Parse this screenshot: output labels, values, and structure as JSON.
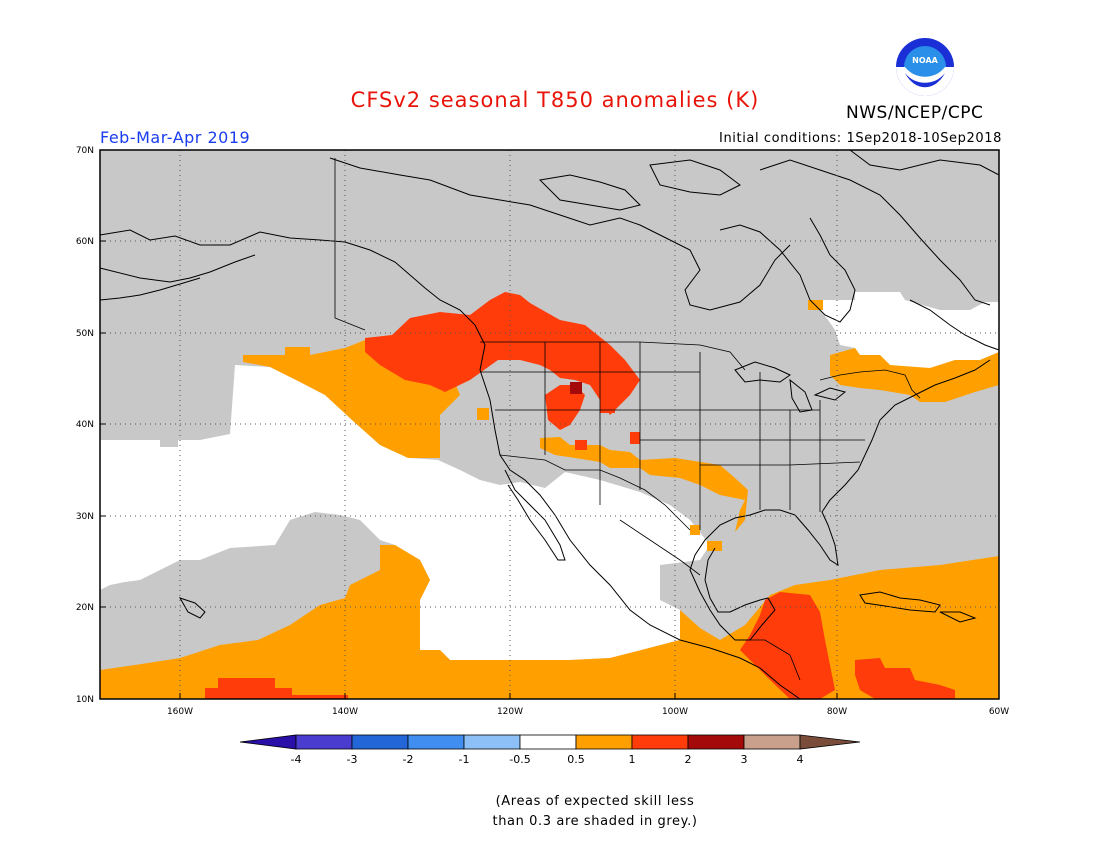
{
  "title": "CFSv2 seasonal T850 anomalies (K)",
  "agency": "NWS/NCEP/CPC",
  "logo_text": "NOAA",
  "period": "Feb-Mar-Apr 2019",
  "initial_conditions": "Initial conditions: 1Sep2018-10Sep2018",
  "lat_labels": [
    "70N",
    "60N",
    "50N",
    "40N",
    "30N",
    "20N",
    "10N"
  ],
  "lon_labels": [
    "160W",
    "140W",
    "120W",
    "100W",
    "80W",
    "60W"
  ],
  "colorbar": {
    "labels": [
      "-4",
      "-3",
      "-2",
      "-1",
      "-0.5",
      "0.5",
      "1",
      "2",
      "3",
      "4"
    ],
    "colors": [
      "#2a0fa8",
      "#4a3ccf",
      "#2266d8",
      "#3f8ef0",
      "#8cc0f6",
      "#ffffff",
      "#ffa000",
      "#ff3c0a",
      "#a50a0a",
      "#c8a08c",
      "#7a4d3a"
    ]
  },
  "legend_colors": {
    "grey_low_skill": "#c8c8c8",
    "near_normal": "#ffffff",
    "warm_0_5_to_1": "#ffa000",
    "warm_1_to_2": "#ff3c0a",
    "warm_2_to_3": "#a50a0a"
  },
  "note_lines": [
    "(Areas of expected skill less",
    "than 0.3 are shaded in grey.)"
  ]
}
